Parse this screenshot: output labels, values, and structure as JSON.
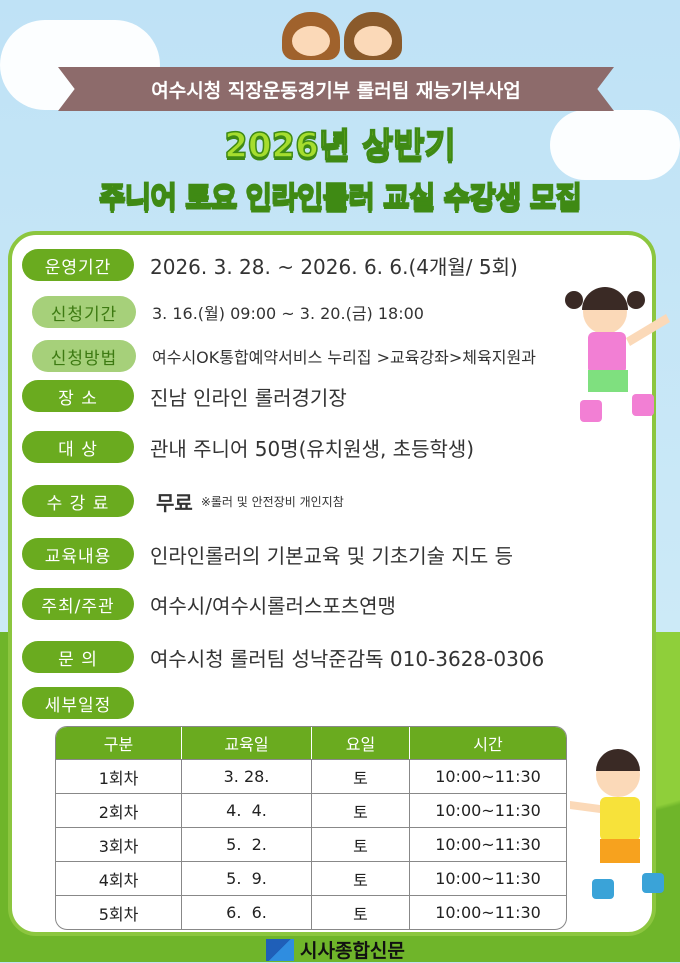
{
  "banner": "여수시청 직장운동경기부 롤러팀 재능기부사업",
  "title_line1": "2026년 상반기",
  "title_line2": "주니어 토요 인라인롤러 교실 수강생 모집",
  "info": [
    {
      "label": "운영기간",
      "value": "2026. 3. 28. ~ 2026. 6. 6.(4개월/ 5회)"
    },
    {
      "label": "신청기간",
      "value": "3. 16.(월) 09:00 ~ 3. 20.(금) 18:00"
    },
    {
      "label": "신청방법",
      "value": "여수시OK통합예약서비스 누리집 >교육강좌>체육지원과"
    },
    {
      "label": "장  소",
      "value": "진남 인라인 롤러경기장"
    },
    {
      "label": "대  상",
      "value": "관내 주니어 50명(유치원생, 초등학생)"
    },
    {
      "label": "수 강 료",
      "value": "무료",
      "note": "※롤러 및 안전장비 개인지참"
    },
    {
      "label": "교육내용",
      "value": "인라인롤러의 기본교육 및 기초기술 지도 등"
    },
    {
      "label": "주최/주관",
      "value": "여수시/여수시롤러스포츠연맹"
    },
    {
      "label": "문  의",
      "value": "여수시청 롤러팀 성낙준감독 010-3628-0306"
    },
    {
      "label": "세부일정"
    }
  ],
  "schedule": {
    "headers": [
      "구분",
      "교육일",
      "요일",
      "시간"
    ],
    "rows": [
      [
        "1회차",
        "3. 28.",
        "토",
        "10:00~11:30"
      ],
      [
        "2회차",
        "4.  4.",
        "토",
        "10:00~11:30"
      ],
      [
        "3회차",
        "5.  2.",
        "토",
        "10:00~11:30"
      ],
      [
        "4회차",
        "5.  9.",
        "토",
        "10:00~11:30"
      ],
      [
        "5회차",
        "6.  6.",
        "토",
        "10:00~11:30"
      ]
    ]
  },
  "watermark": "시사종합신문",
  "colors": {
    "sky": "#bfe2f6",
    "green": "#6aab1f",
    "light_green": "#a6d07a",
    "banner": "#8d6b6b",
    "title": "#a6dd2e"
  }
}
